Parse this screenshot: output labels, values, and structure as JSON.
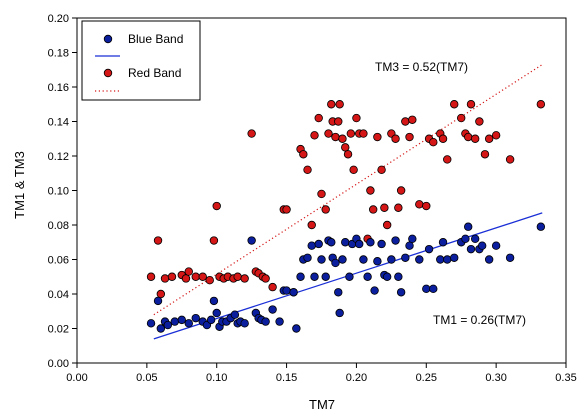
{
  "colors": {
    "blue": "#0b1f9e",
    "blue_line": "#1a2fd6",
    "red": "#d41616",
    "red_line": "#d41616",
    "marker_edge": "#000000",
    "axis": "#000000"
  },
  "chart_data": {
    "type": "scatter",
    "title": "",
    "xlabel": "TM7",
    "ylabel": "TM1 & TM3",
    "xlim": [
      0.0,
      0.35
    ],
    "ylim": [
      0.0,
      0.2
    ],
    "x_ticks": [
      "0.00",
      "0.05",
      "0.10",
      "0.15",
      "0.20",
      "0.25",
      "0.30",
      "0.35"
    ],
    "y_ticks": [
      "0.00",
      "0.02",
      "0.04",
      "0.06",
      "0.08",
      "0.10",
      "0.12",
      "0.14",
      "0.16",
      "0.18",
      "0.20"
    ],
    "legend": {
      "placement": "top-left",
      "entries": [
        "Blue Band",
        "",
        "Red Band",
        ""
      ]
    },
    "series": [
      {
        "name": "Blue Band",
        "marker": "circle",
        "color_key": "blue",
        "points": [
          [
            0.053,
            0.023
          ],
          [
            0.058,
            0.036
          ],
          [
            0.06,
            0.02
          ],
          [
            0.063,
            0.024
          ],
          [
            0.065,
            0.022
          ],
          [
            0.07,
            0.024
          ],
          [
            0.075,
            0.025
          ],
          [
            0.08,
            0.023
          ],
          [
            0.085,
            0.026
          ],
          [
            0.09,
            0.024
          ],
          [
            0.093,
            0.022
          ],
          [
            0.096,
            0.025
          ],
          [
            0.098,
            0.036
          ],
          [
            0.1,
            0.029
          ],
          [
            0.102,
            0.021
          ],
          [
            0.104,
            0.024
          ],
          [
            0.107,
            0.024
          ],
          [
            0.11,
            0.026
          ],
          [
            0.113,
            0.028
          ],
          [
            0.115,
            0.023
          ],
          [
            0.117,
            0.024
          ],
          [
            0.12,
            0.023
          ],
          [
            0.125,
            0.071
          ],
          [
            0.128,
            0.029
          ],
          [
            0.13,
            0.026
          ],
          [
            0.132,
            0.025
          ],
          [
            0.135,
            0.024
          ],
          [
            0.14,
            0.031
          ],
          [
            0.145,
            0.024
          ],
          [
            0.148,
            0.042
          ],
          [
            0.15,
            0.042
          ],
          [
            0.155,
            0.041
          ],
          [
            0.157,
            0.02
          ],
          [
            0.16,
            0.05
          ],
          [
            0.162,
            0.06
          ],
          [
            0.165,
            0.061
          ],
          [
            0.168,
            0.068
          ],
          [
            0.17,
            0.05
          ],
          [
            0.173,
            0.069
          ],
          [
            0.175,
            0.06
          ],
          [
            0.178,
            0.05
          ],
          [
            0.18,
            0.071
          ],
          [
            0.182,
            0.07
          ],
          [
            0.183,
            0.061
          ],
          [
            0.185,
            0.058
          ],
          [
            0.187,
            0.041
          ],
          [
            0.188,
            0.029
          ],
          [
            0.19,
            0.06
          ],
          [
            0.192,
            0.07
          ],
          [
            0.195,
            0.05
          ],
          [
            0.197,
            0.069
          ],
          [
            0.2,
            0.072
          ],
          [
            0.202,
            0.069
          ],
          [
            0.205,
            0.06
          ],
          [
            0.208,
            0.05
          ],
          [
            0.21,
            0.07
          ],
          [
            0.213,
            0.042
          ],
          [
            0.215,
            0.059
          ],
          [
            0.218,
            0.069
          ],
          [
            0.22,
            0.051
          ],
          [
            0.222,
            0.05
          ],
          [
            0.225,
            0.06
          ],
          [
            0.228,
            0.071
          ],
          [
            0.23,
            0.05
          ],
          [
            0.232,
            0.041
          ],
          [
            0.235,
            0.061
          ],
          [
            0.238,
            0.068
          ],
          [
            0.24,
            0.072
          ],
          [
            0.245,
            0.06
          ],
          [
            0.25,
            0.043
          ],
          [
            0.252,
            0.066
          ],
          [
            0.255,
            0.043
          ],
          [
            0.26,
            0.06
          ],
          [
            0.262,
            0.07
          ],
          [
            0.265,
            0.06
          ],
          [
            0.27,
            0.061
          ],
          [
            0.275,
            0.07
          ],
          [
            0.278,
            0.072
          ],
          [
            0.28,
            0.079
          ],
          [
            0.282,
            0.066
          ],
          [
            0.285,
            0.072
          ],
          [
            0.288,
            0.066
          ],
          [
            0.29,
            0.068
          ],
          [
            0.295,
            0.06
          ],
          [
            0.3,
            0.068
          ],
          [
            0.31,
            0.061
          ],
          [
            0.332,
            0.079
          ]
        ]
      },
      {
        "name": "Red Band",
        "marker": "circle",
        "color_key": "red",
        "points": [
          [
            0.053,
            0.05
          ],
          [
            0.058,
            0.071
          ],
          [
            0.06,
            0.04
          ],
          [
            0.063,
            0.049
          ],
          [
            0.068,
            0.05
          ],
          [
            0.075,
            0.051
          ],
          [
            0.078,
            0.049
          ],
          [
            0.08,
            0.053
          ],
          [
            0.085,
            0.05
          ],
          [
            0.09,
            0.05
          ],
          [
            0.095,
            0.048
          ],
          [
            0.098,
            0.071
          ],
          [
            0.1,
            0.091
          ],
          [
            0.102,
            0.05
          ],
          [
            0.105,
            0.049
          ],
          [
            0.108,
            0.05
          ],
          [
            0.112,
            0.049
          ],
          [
            0.115,
            0.05
          ],
          [
            0.12,
            0.049
          ],
          [
            0.125,
            0.133
          ],
          [
            0.128,
            0.053
          ],
          [
            0.13,
            0.052
          ],
          [
            0.133,
            0.05
          ],
          [
            0.135,
            0.049
          ],
          [
            0.14,
            0.044
          ],
          [
            0.148,
            0.089
          ],
          [
            0.15,
            0.089
          ],
          [
            0.155,
            0.041
          ],
          [
            0.16,
            0.124
          ],
          [
            0.162,
            0.121
          ],
          [
            0.165,
            0.112
          ],
          [
            0.168,
            0.08
          ],
          [
            0.17,
            0.132
          ],
          [
            0.173,
            0.142
          ],
          [
            0.175,
            0.098
          ],
          [
            0.178,
            0.089
          ],
          [
            0.18,
            0.133
          ],
          [
            0.182,
            0.15
          ],
          [
            0.183,
            0.14
          ],
          [
            0.185,
            0.131
          ],
          [
            0.187,
            0.14
          ],
          [
            0.188,
            0.15
          ],
          [
            0.19,
            0.13
          ],
          [
            0.192,
            0.125
          ],
          [
            0.194,
            0.121
          ],
          [
            0.196,
            0.133
          ],
          [
            0.198,
            0.112
          ],
          [
            0.2,
            0.142
          ],
          [
            0.202,
            0.133
          ],
          [
            0.205,
            0.133
          ],
          [
            0.208,
            0.072
          ],
          [
            0.21,
            0.1
          ],
          [
            0.212,
            0.089
          ],
          [
            0.215,
            0.131
          ],
          [
            0.218,
            0.112
          ],
          [
            0.22,
            0.09
          ],
          [
            0.222,
            0.08
          ],
          [
            0.225,
            0.133
          ],
          [
            0.228,
            0.13
          ],
          [
            0.23,
            0.09
          ],
          [
            0.232,
            0.1
          ],
          [
            0.235,
            0.14
          ],
          [
            0.238,
            0.131
          ],
          [
            0.24,
            0.141
          ],
          [
            0.245,
            0.092
          ],
          [
            0.25,
            0.091
          ],
          [
            0.252,
            0.13
          ],
          [
            0.255,
            0.128
          ],
          [
            0.26,
            0.133
          ],
          [
            0.262,
            0.13
          ],
          [
            0.265,
            0.118
          ],
          [
            0.27,
            0.15
          ],
          [
            0.275,
            0.142
          ],
          [
            0.278,
            0.133
          ],
          [
            0.28,
            0.131
          ],
          [
            0.282,
            0.15
          ],
          [
            0.285,
            0.13
          ],
          [
            0.288,
            0.14
          ],
          [
            0.292,
            0.121
          ],
          [
            0.295,
            0.13
          ],
          [
            0.3,
            0.132
          ],
          [
            0.31,
            0.118
          ],
          [
            0.332,
            0.15
          ]
        ]
      }
    ],
    "fit_lines": [
      {
        "color_key": "blue_line",
        "style": "solid",
        "x_start": 0.055,
        "x_end": 0.333,
        "y_start": 0.014,
        "y_end": 0.087
      },
      {
        "color_key": "red_line",
        "style": "dotted",
        "x_start": 0.055,
        "x_end": 0.333,
        "y_start": 0.028,
        "y_end": 0.173
      }
    ],
    "annotations": [
      {
        "text": "TM3 = 0.52(TM7)",
        "x": 0.245,
        "y": 0.162
      },
      {
        "text": "TM1 = 0.26(TM7)",
        "x": 0.283,
        "y": 0.033
      }
    ]
  }
}
